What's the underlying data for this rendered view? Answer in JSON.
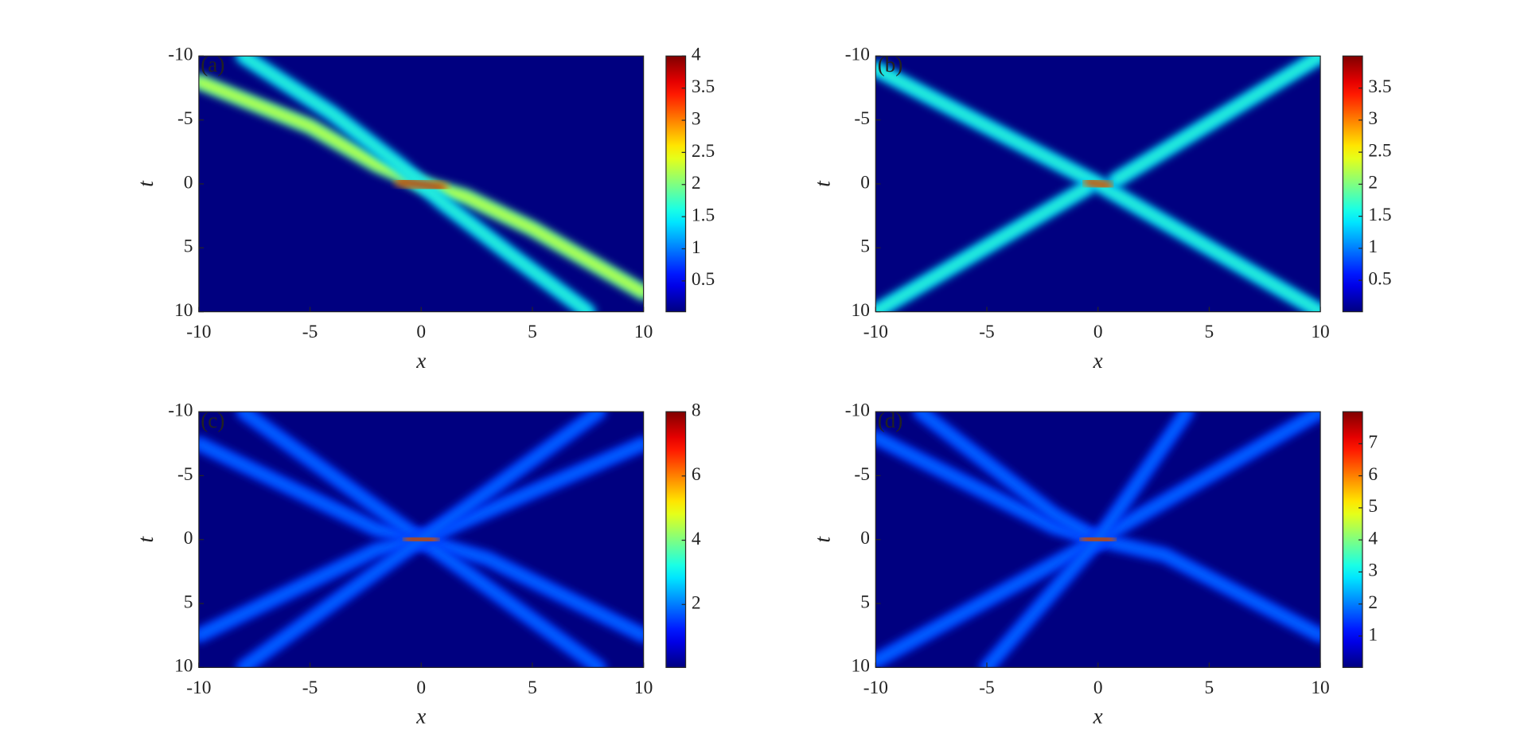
{
  "chart_data": [
    {
      "type": "heatmap",
      "panel_label": "(a)",
      "xlabel": "x",
      "ylabel": "t",
      "colormap": "jet",
      "xlim": [
        -10,
        10
      ],
      "ylim": [
        10,
        -10
      ],
      "xticks": [
        -10,
        -5,
        0,
        5,
        10
      ],
      "yticks": [
        -10,
        -5,
        0,
        5,
        10
      ],
      "clim": [
        0.02,
        4
      ],
      "cticks": [
        0.5,
        1,
        1.5,
        2,
        2.5,
        3,
        3.5,
        4
      ],
      "ridges": [
        {
          "x": [
            -10,
            -5,
            -2,
            0,
            2,
            5,
            10
          ],
          "t": [
            -8,
            -4.5,
            -1.5,
            0,
            1,
            3.5,
            8.5
          ],
          "peak": 2.5
        },
        {
          "x": [
            -8,
            -4,
            -1,
            0,
            1,
            4,
            7.5
          ],
          "t": [
            -10,
            -5.5,
            -1.5,
            0,
            1.5,
            5.5,
            10
          ],
          "peak": 1.8
        },
        {
          "x": [
            -1,
            1
          ],
          "t": [
            -0.2,
            0.3
          ],
          "peak": 4
        }
      ]
    },
    {
      "type": "heatmap",
      "panel_label": "(b)",
      "xlabel": "x",
      "ylabel": "t",
      "colormap": "jet",
      "xlim": [
        -10,
        10
      ],
      "ylim": [
        10,
        -10
      ],
      "xticks": [
        -10,
        -5,
        0,
        5,
        10
      ],
      "yticks": [
        -10,
        -5,
        0,
        5,
        10
      ],
      "clim": [
        0.01,
        4
      ],
      "cticks": [
        0.5,
        1,
        1.5,
        2,
        2.5,
        3,
        3.5
      ],
      "ridges": [
        {
          "x": [
            -10,
            0,
            10
          ],
          "t": [
            -9,
            0,
            10
          ],
          "peak": 1.8
        },
        {
          "x": [
            -10,
            -0.5
          ],
          "t": [
            10,
            0.3
          ],
          "peak": 1.8
        },
        {
          "x": [
            0.8,
            10
          ],
          "t": [
            -0.3,
            -10
          ],
          "peak": 1.8
        },
        {
          "x": [
            -0.5,
            0.5
          ],
          "t": [
            -0.2,
            0.2
          ],
          "peak": 3.9
        }
      ]
    },
    {
      "type": "heatmap",
      "panel_label": "(c)",
      "xlabel": "x",
      "ylabel": "t",
      "colormap": "jet",
      "xlim": [
        -10,
        10
      ],
      "ylim": [
        10,
        -10
      ],
      "xticks": [
        -10,
        -5,
        0,
        5,
        10
      ],
      "yticks": [
        -10,
        -5,
        0,
        5,
        10
      ],
      "clim": [
        0.04,
        8
      ],
      "cticks": [
        2,
        4,
        6,
        8
      ],
      "ridges": [
        {
          "x": [
            -10,
            -2,
            0,
            3,
            10
          ],
          "t": [
            -7.5,
            -0.8,
            0,
            1.5,
            7.5
          ],
          "peak": 2
        },
        {
          "x": [
            -8,
            -2,
            0,
            2,
            8
          ],
          "t": [
            -10,
            -2.5,
            0,
            2.5,
            10
          ],
          "peak": 2
        },
        {
          "x": [
            -10,
            -2,
            0,
            2,
            10
          ],
          "t": [
            7.5,
            0.8,
            0,
            -1.5,
            -7.5
          ],
          "peak": 2
        },
        {
          "x": [
            -8,
            -2,
            0,
            2,
            8
          ],
          "t": [
            10,
            2.5,
            0,
            -2.5,
            -10
          ],
          "peak": 2
        },
        {
          "x": [
            -0.6,
            0.6
          ],
          "t": [
            -0.1,
            0.1
          ],
          "peak": 8
        }
      ]
    },
    {
      "type": "heatmap",
      "panel_label": "(d)",
      "xlabel": "x",
      "ylabel": "t",
      "colormap": "jet",
      "xlim": [
        -10,
        10
      ],
      "ylim": [
        10,
        -10
      ],
      "xticks": [
        -10,
        -5,
        0,
        5,
        10
      ],
      "yticks": [
        -10,
        -5,
        0,
        5,
        10
      ],
      "clim": [
        0.02,
        8
      ],
      "cticks": [
        1,
        2,
        3,
        4,
        5,
        6,
        7
      ],
      "ridges": [
        {
          "x": [
            -10,
            -2,
            0,
            3,
            10
          ],
          "t": [
            -8,
            -1,
            0,
            1.2,
            7.5
          ],
          "peak": 2
        },
        {
          "x": [
            -8,
            -2,
            0
          ],
          "t": [
            -10,
            -2,
            0
          ],
          "peak": 2
        },
        {
          "x": [
            -10,
            0,
            10
          ],
          "t": [
            9.5,
            0,
            -10
          ],
          "peak": 2
        },
        {
          "x": [
            -5,
            0,
            4
          ],
          "t": [
            10,
            0,
            -10
          ],
          "peak": 2
        },
        {
          "x": [
            -0.6,
            0.6
          ],
          "t": [
            -0.1,
            0.1
          ],
          "peak": 8
        }
      ]
    }
  ]
}
